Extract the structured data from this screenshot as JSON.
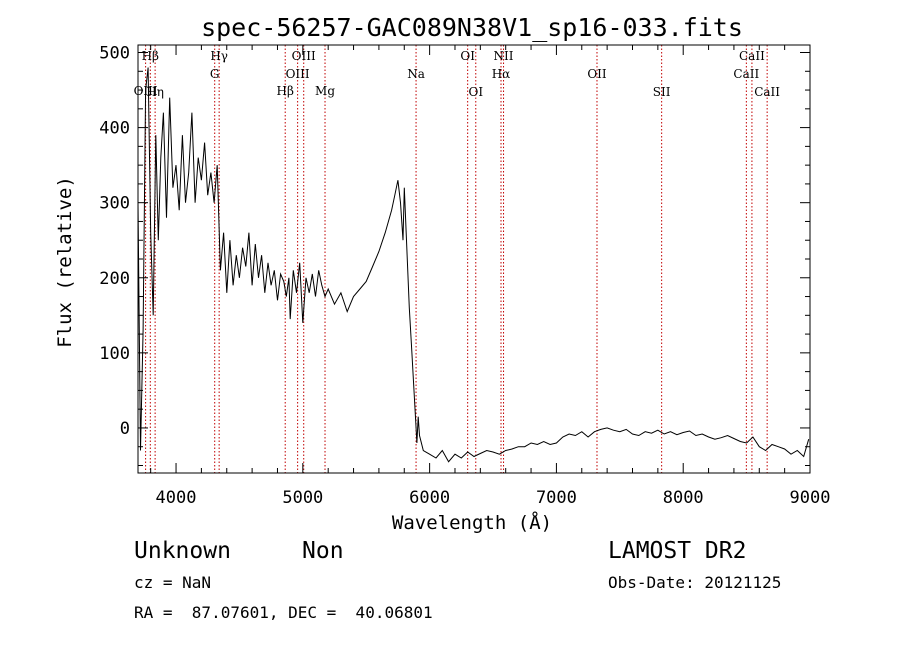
{
  "title": "spec-56257-GAC089N38V1_sp16-033.fits",
  "info": {
    "class_label": "Unknown",
    "subclass_label": "Non",
    "survey": "LAMOST DR2",
    "cz": "cz = NaN",
    "obs_date": "Obs-Date: 20121125",
    "coords": "RA =  87.07601, DEC =  40.06801"
  },
  "chart_data": {
    "type": "line",
    "title": "spec-56257-GAC089N38V1_sp16-033.fits",
    "xlabel": "Wavelength (Å)",
    "ylabel": "Flux (relative)",
    "xlim": [
      3700,
      9000
    ],
    "ylim": [
      -60,
      510
    ],
    "xticks": [
      4000,
      5000,
      6000,
      7000,
      8000,
      9000
    ],
    "yticks": [
      0,
      100,
      200,
      300,
      400,
      500
    ],
    "grid": false,
    "series": [
      {
        "x": [
          3700,
          3720,
          3740,
          3760,
          3780,
          3800,
          3820,
          3840,
          3860,
          3880,
          3900,
          3925,
          3950,
          3975,
          4000,
          4025,
          4050,
          4075,
          4100,
          4125,
          4150,
          4175,
          4200,
          4225,
          4250,
          4275,
          4300,
          4325,
          4350,
          4375,
          4400,
          4425,
          4450,
          4475,
          4500,
          4525,
          4550,
          4575,
          4600,
          4625,
          4650,
          4675,
          4700,
          4725,
          4750,
          4775,
          4800,
          4825,
          4850,
          4870,
          4890,
          4900,
          4925,
          4950,
          4975,
          5000,
          5025,
          5050,
          5075,
          5100,
          5125,
          5150,
          5175,
          5200,
          5250,
          5300,
          5350,
          5400,
          5450,
          5500,
          5550,
          5600,
          5650,
          5700,
          5725,
          5750,
          5770,
          5790,
          5800,
          5820,
          5840,
          5860,
          5880,
          5900,
          5910,
          5920,
          5950,
          6000,
          6050,
          6100,
          6150,
          6200,
          6250,
          6300,
          6350,
          6400,
          6450,
          6500,
          6550,
          6600,
          6650,
          6700,
          6750,
          6800,
          6850,
          6900,
          6950,
          7000,
          7050,
          7100,
          7150,
          7200,
          7250,
          7300,
          7350,
          7400,
          7450,
          7500,
          7550,
          7600,
          7650,
          7700,
          7750,
          7800,
          7850,
          7900,
          7950,
          8000,
          8050,
          8100,
          8150,
          8200,
          8250,
          8300,
          8350,
          8400,
          8450,
          8500,
          8550,
          8600,
          8650,
          8700,
          8750,
          8800,
          8850,
          8900,
          8950,
          8990
        ],
        "y": [
          300,
          -30,
          130,
          450,
          480,
          260,
          150,
          390,
          250,
          360,
          420,
          280,
          440,
          320,
          350,
          290,
          390,
          300,
          340,
          420,
          300,
          360,
          330,
          380,
          310,
          340,
          300,
          350,
          210,
          260,
          180,
          250,
          190,
          230,
          200,
          240,
          215,
          260,
          190,
          245,
          200,
          230,
          180,
          220,
          190,
          210,
          170,
          205,
          195,
          175,
          200,
          145,
          210,
          180,
          220,
          140,
          200,
          180,
          205,
          175,
          210,
          190,
          175,
          185,
          165,
          180,
          155,
          175,
          185,
          195,
          215,
          235,
          260,
          290,
          310,
          330,
          300,
          250,
          320,
          240,
          160,
          100,
          40,
          -20,
          15,
          -10,
          -30,
          -35,
          -40,
          -30,
          -45,
          -35,
          -40,
          -32,
          -38,
          -34,
          -30,
          -32,
          -35,
          -30,
          -28,
          -25,
          -25,
          -20,
          -22,
          -18,
          -22,
          -20,
          -12,
          -8,
          -10,
          -5,
          -12,
          -5,
          -2,
          0,
          -3,
          -5,
          -2,
          -8,
          -10,
          -5,
          -7,
          -3,
          -8,
          -5,
          -9,
          -6,
          -4,
          -10,
          -8,
          -12,
          -15,
          -13,
          -10,
          -14,
          -18,
          -20,
          -12,
          -25,
          -30,
          -22,
          -25,
          -28,
          -35,
          -30,
          -38,
          -15
        ]
      }
    ],
    "lines": [
      {
        "label": "Hβ",
        "x": 3797,
        "row": 0
      },
      {
        "label": "Hη",
        "x": 3835,
        "row": 2
      },
      {
        "label": "OIII",
        "x": 3760,
        "row": 3
      },
      {
        "label": "Hγ",
        "x": 4340,
        "row": 0
      },
      {
        "label": "G",
        "x": 4305,
        "row": 1
      },
      {
        "label": "OIII",
        "x": 5007,
        "row": 0
      },
      {
        "label": "OIII",
        "x": 4959,
        "row": 1
      },
      {
        "label": "Hβ",
        "x": 4861,
        "row": 3
      },
      {
        "label": "Mg",
        "x": 5175,
        "row": 3
      },
      {
        "label": "Na",
        "x": 5893,
        "row": 1
      },
      {
        "label": "OI",
        "x": 6300,
        "row": 0
      },
      {
        "label": "OI",
        "x": 6364,
        "row": 2
      },
      {
        "label": "NII",
        "x": 6583,
        "row": 0
      },
      {
        "label": "Hα",
        "x": 6563,
        "row": 1
      },
      {
        "label": "OII",
        "x": 7320,
        "row": 1
      },
      {
        "label": "SII",
        "x": 7830,
        "row": 2
      },
      {
        "label": "CaII",
        "x": 8542,
        "row": 0
      },
      {
        "label": "CaII",
        "x": 8498,
        "row": 1
      },
      {
        "label": "CaII",
        "x": 8662,
        "row": 2
      }
    ]
  }
}
